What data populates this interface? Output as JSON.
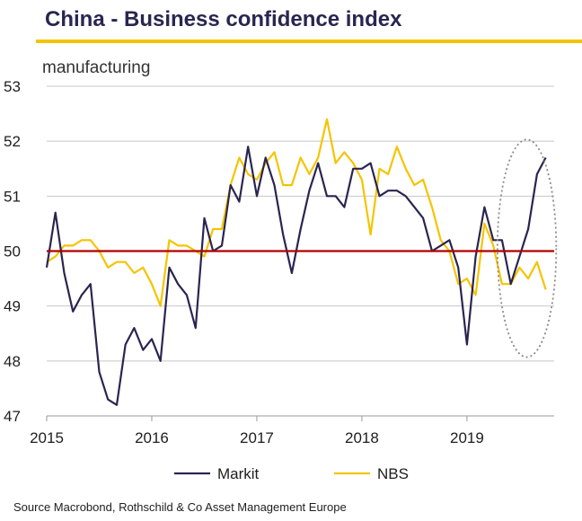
{
  "chart_data": {
    "type": "line",
    "title": "China - Business confidence index",
    "subtitle": "manufacturing",
    "source": "Source Macrobond, Rothschild & Co Asset Management Europe",
    "xlim": [
      2015,
      2019.83
    ],
    "ylim": [
      47,
      53
    ],
    "yticks": [
      47,
      48,
      49,
      50,
      51,
      52,
      53
    ],
    "xticks": [
      2015,
      2016,
      2017,
      2018,
      2019
    ],
    "xtick_labels": [
      "2015",
      "2016",
      "2017",
      "2018",
      "2019"
    ],
    "reference_line": {
      "y": 50,
      "color": "#b00000"
    },
    "highlight_ellipse": {
      "cx": 2019.57,
      "cy": 50.05,
      "rx": 0.28,
      "ry": 1.98
    },
    "series": [
      {
        "name": "Markit",
        "color": "#2a2550",
        "x": [
          2015,
          2015.083,
          2015.167,
          2015.25,
          2015.333,
          2015.417,
          2015.5,
          2015.583,
          2015.667,
          2015.75,
          2015.833,
          2015.917,
          2016,
          2016.083,
          2016.167,
          2016.25,
          2016.333,
          2016.417,
          2016.5,
          2016.583,
          2016.667,
          2016.75,
          2016.833,
          2016.917,
          2017,
          2017.083,
          2017.167,
          2017.25,
          2017.333,
          2017.417,
          2017.5,
          2017.583,
          2017.667,
          2017.75,
          2017.833,
          2017.917,
          2018,
          2018.083,
          2018.167,
          2018.25,
          2018.333,
          2018.417,
          2018.5,
          2018.583,
          2018.667,
          2018.75,
          2018.833,
          2018.917,
          2019,
          2019.083,
          2019.167,
          2019.25,
          2019.333,
          2019.417,
          2019.5,
          2019.583,
          2019.667,
          2019.75
        ],
        "values": [
          49.7,
          50.7,
          49.6,
          48.9,
          49.2,
          49.4,
          47.8,
          47.3,
          47.2,
          48.3,
          48.6,
          48.2,
          48.4,
          48.0,
          49.7,
          49.4,
          49.2,
          48.6,
          50.6,
          50.0,
          50.1,
          51.2,
          50.9,
          51.9,
          51.0,
          51.7,
          51.2,
          50.3,
          49.6,
          50.4,
          51.1,
          51.6,
          51.0,
          51.0,
          50.8,
          51.5,
          51.5,
          51.6,
          51.0,
          51.1,
          51.1,
          51.0,
          50.8,
          50.6,
          50.0,
          50.1,
          50.2,
          49.7,
          48.3,
          49.9,
          50.8,
          50.2,
          50.2,
          49.4,
          49.9,
          50.4,
          51.4,
          51.7
        ]
      },
      {
        "name": "NBS",
        "color": "#f5c400",
        "x": [
          2015,
          2015.083,
          2015.167,
          2015.25,
          2015.333,
          2015.417,
          2015.5,
          2015.583,
          2015.667,
          2015.75,
          2015.833,
          2015.917,
          2016,
          2016.083,
          2016.167,
          2016.25,
          2016.333,
          2016.417,
          2016.5,
          2016.583,
          2016.667,
          2016.75,
          2016.833,
          2016.917,
          2017,
          2017.083,
          2017.167,
          2017.25,
          2017.333,
          2017.417,
          2017.5,
          2017.583,
          2017.667,
          2017.75,
          2017.833,
          2017.917,
          2018,
          2018.083,
          2018.167,
          2018.25,
          2018.333,
          2018.417,
          2018.5,
          2018.583,
          2018.667,
          2018.75,
          2018.833,
          2018.917,
          2019,
          2019.083,
          2019.167,
          2019.25,
          2019.333,
          2019.417,
          2019.5,
          2019.583,
          2019.667,
          2019.75
        ],
        "values": [
          49.8,
          49.9,
          50.1,
          50.1,
          50.2,
          50.2,
          50.0,
          49.7,
          49.8,
          49.8,
          49.6,
          49.7,
          49.4,
          49.0,
          50.2,
          50.1,
          50.1,
          50.0,
          49.9,
          50.4,
          50.4,
          51.2,
          51.7,
          51.4,
          51.3,
          51.6,
          51.8,
          51.2,
          51.2,
          51.7,
          51.4,
          51.7,
          52.4,
          51.6,
          51.8,
          51.6,
          51.3,
          50.3,
          51.5,
          51.4,
          51.9,
          51.5,
          51.2,
          51.3,
          50.8,
          50.2,
          50.0,
          49.4,
          49.5,
          49.2,
          50.5,
          50.1,
          49.4,
          49.4,
          49.7,
          49.5,
          49.8,
          49.3
        ]
      }
    ],
    "legend": {
      "placement": "bottom",
      "entries": [
        "Markit",
        "NBS"
      ]
    }
  }
}
